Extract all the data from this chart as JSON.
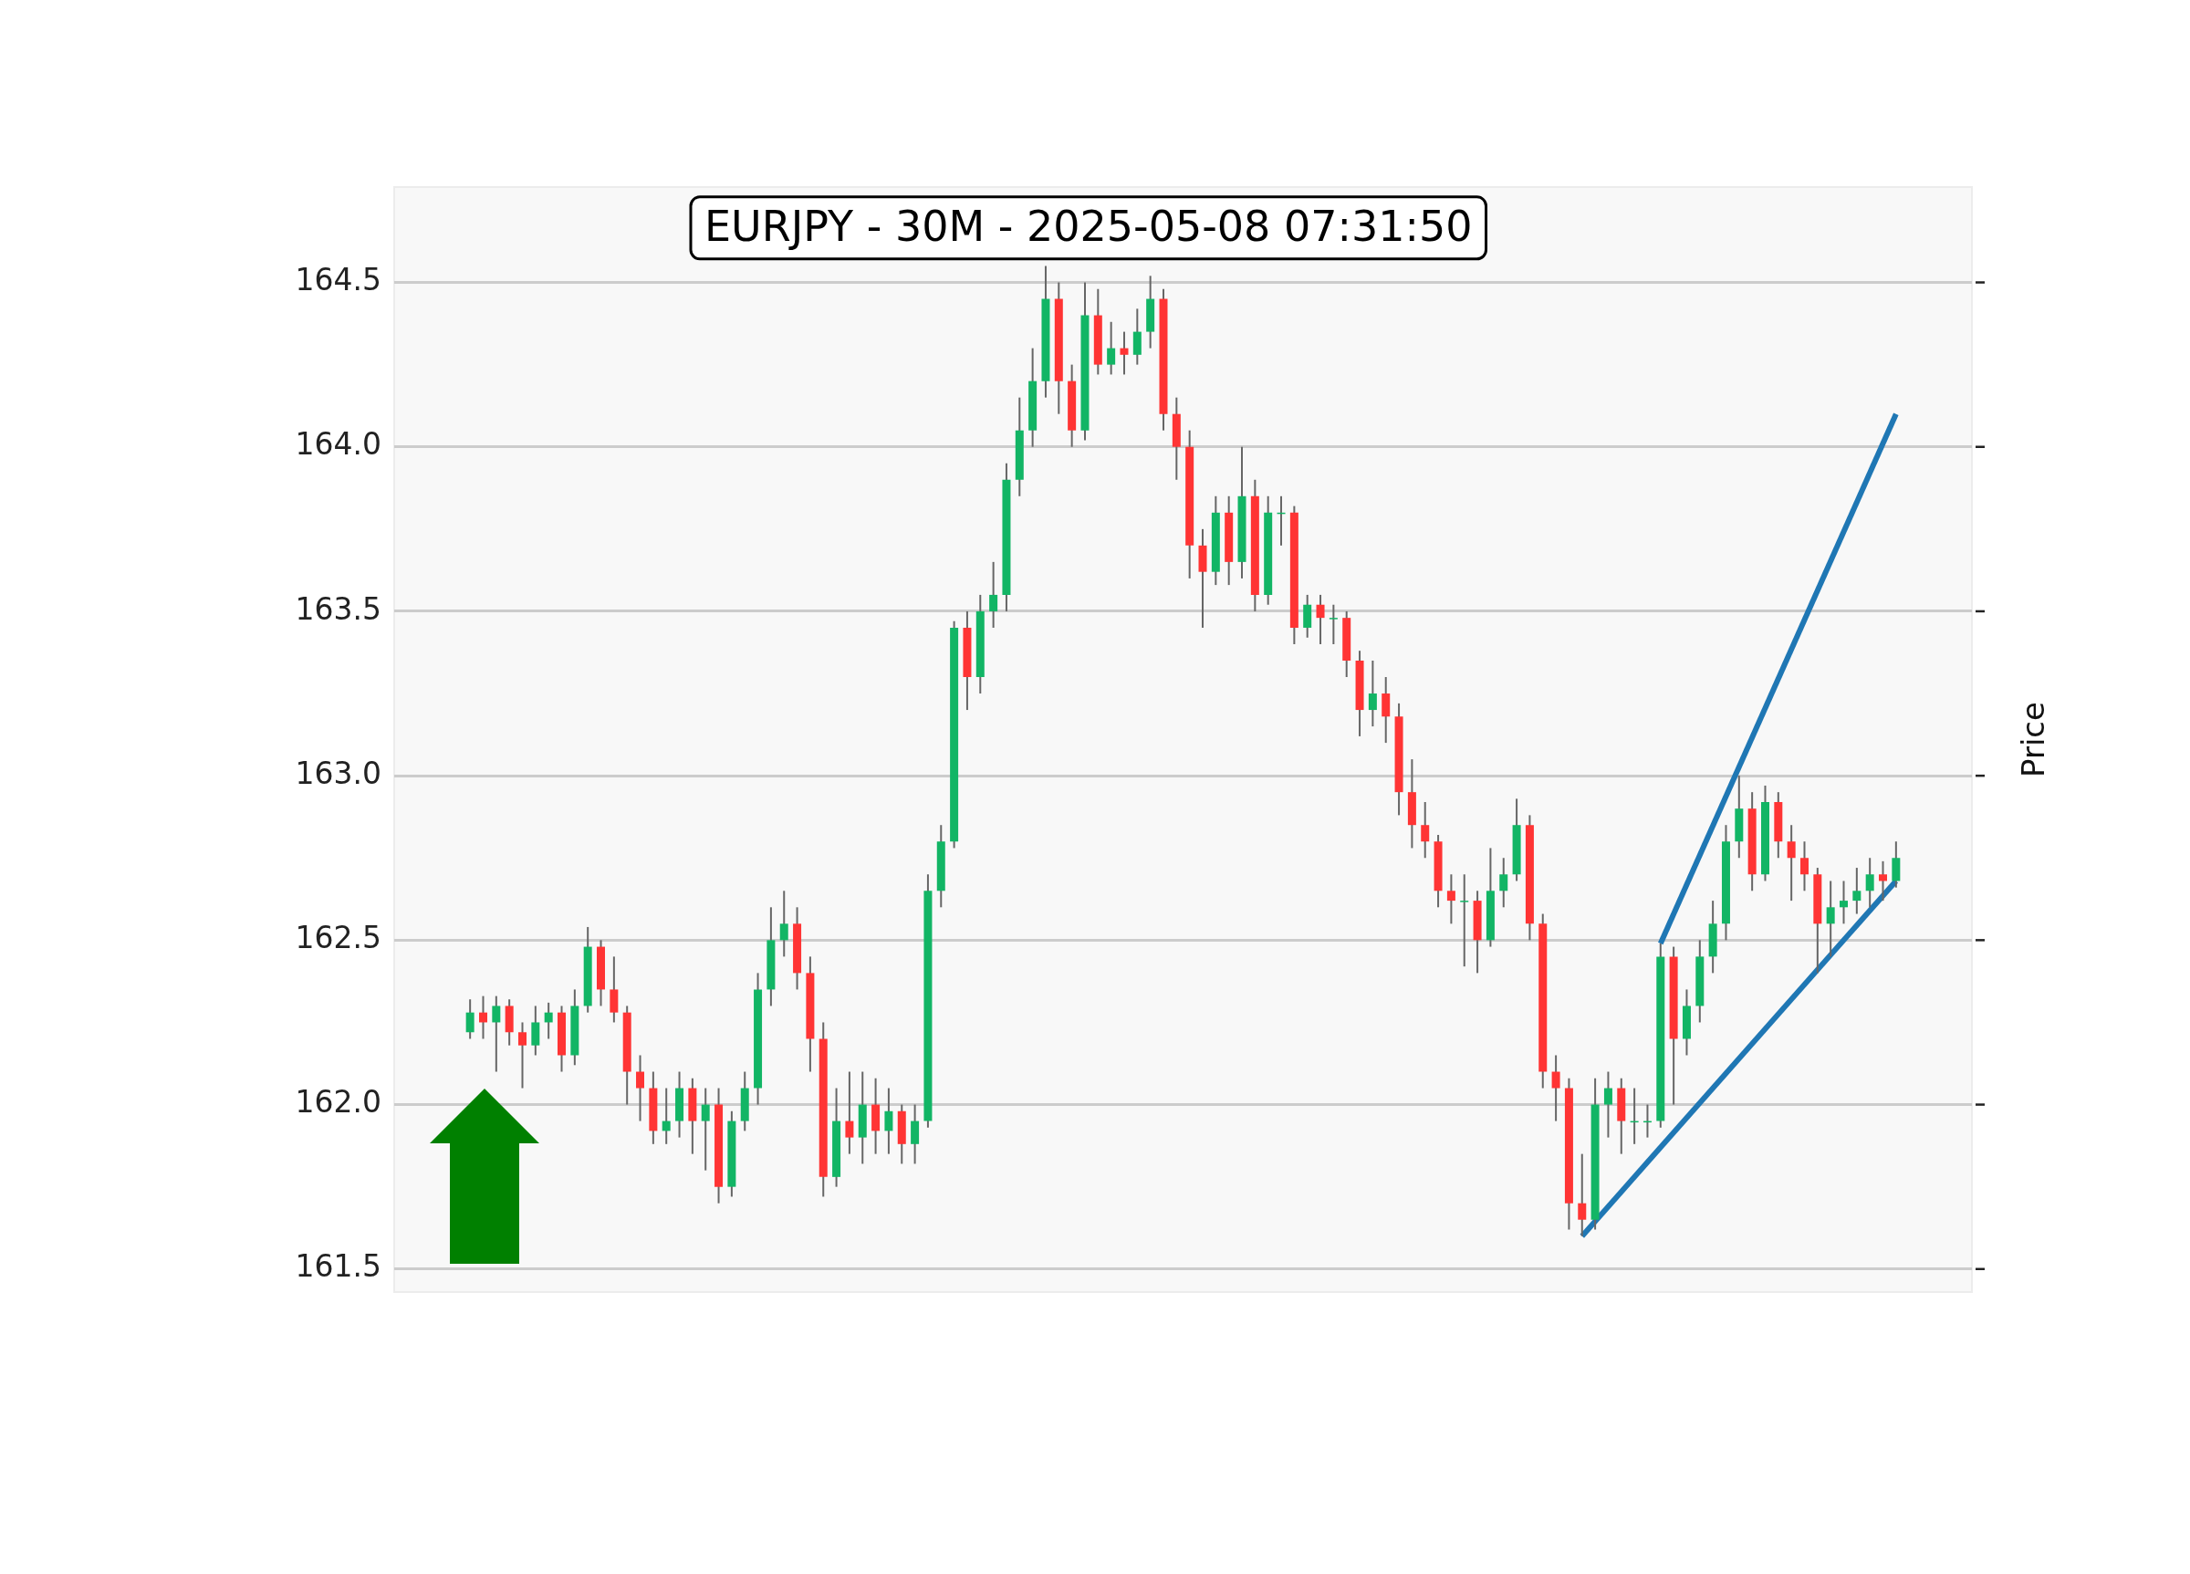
{
  "chart_data": {
    "type": "candlestick",
    "title": "EURJPY - 30M - 2025-05-08 07:31:50",
    "ylabel": "Price",
    "categories": [
      null,
      null,
      null,
      null,
      null,
      null,
      null,
      null,
      null,
      null,
      null,
      null,
      null,
      null,
      null,
      null,
      null,
      null,
      null,
      null,
      null,
      null,
      null,
      null,
      null,
      null,
      null,
      null,
      null,
      null,
      null,
      null,
      null,
      null,
      null,
      null,
      null,
      null,
      null,
      null,
      null,
      null,
      null,
      null,
      null,
      null,
      null,
      null,
      null,
      null,
      null,
      null,
      null,
      null,
      null,
      null,
      null,
      null,
      null,
      null,
      null,
      null,
      null,
      null,
      null,
      null,
      null,
      null,
      null,
      null,
      null,
      null,
      null,
      null,
      null,
      null,
      null,
      null,
      null,
      null,
      null,
      null,
      null,
      null,
      null,
      null,
      null,
      null,
      null,
      null,
      null,
      null,
      null,
      null,
      null,
      null,
      null,
      null,
      null,
      null,
      null,
      null,
      null,
      null,
      null,
      null,
      null,
      null,
      null,
      null
    ],
    "ohlc": [
      [
        162.22,
        162.32,
        162.2,
        162.28
      ],
      [
        162.28,
        162.33,
        162.2,
        162.25
      ],
      [
        162.25,
        162.33,
        162.1,
        162.3
      ],
      [
        162.3,
        162.32,
        162.18,
        162.22
      ],
      [
        162.22,
        162.25,
        162.05,
        162.18
      ],
      [
        162.18,
        162.3,
        162.15,
        162.25
      ],
      [
        162.25,
        162.31,
        162.2,
        162.28
      ],
      [
        162.28,
        162.3,
        162.1,
        162.15
      ],
      [
        162.15,
        162.35,
        162.12,
        162.3
      ],
      [
        162.3,
        162.54,
        162.28,
        162.48
      ],
      [
        162.48,
        162.5,
        162.3,
        162.35
      ],
      [
        162.35,
        162.45,
        162.25,
        162.28
      ],
      [
        162.28,
        162.3,
        162.0,
        162.1
      ],
      [
        162.1,
        162.15,
        161.95,
        162.05
      ],
      [
        162.05,
        162.1,
        161.88,
        161.92
      ],
      [
        161.92,
        162.05,
        161.88,
        161.95
      ],
      [
        161.95,
        162.1,
        161.9,
        162.05
      ],
      [
        162.05,
        162.08,
        161.85,
        161.95
      ],
      [
        161.95,
        162.05,
        161.8,
        162.0
      ],
      [
        162.0,
        162.05,
        161.7,
        161.75
      ],
      [
        161.75,
        161.98,
        161.72,
        161.95
      ],
      [
        161.95,
        162.1,
        161.92,
        162.05
      ],
      [
        162.05,
        162.4,
        162.0,
        162.35
      ],
      [
        162.35,
        162.6,
        162.3,
        162.5
      ],
      [
        162.5,
        162.65,
        162.45,
        162.55
      ],
      [
        162.55,
        162.6,
        162.35,
        162.4
      ],
      [
        162.4,
        162.45,
        162.1,
        162.2
      ],
      [
        162.2,
        162.25,
        161.72,
        161.78
      ],
      [
        161.78,
        162.05,
        161.75,
        161.95
      ],
      [
        161.95,
        162.1,
        161.85,
        161.9
      ],
      [
        161.9,
        162.1,
        161.82,
        162.0
      ],
      [
        162.0,
        162.08,
        161.85,
        161.92
      ],
      [
        161.92,
        162.05,
        161.85,
        161.98
      ],
      [
        161.98,
        162.0,
        161.82,
        161.88
      ],
      [
        161.88,
        162.0,
        161.82,
        161.95
      ],
      [
        161.95,
        162.7,
        161.93,
        162.65
      ],
      [
        162.65,
        162.85,
        162.6,
        162.8
      ],
      [
        162.8,
        163.47,
        162.78,
        163.45
      ],
      [
        163.45,
        163.5,
        163.2,
        163.3
      ],
      [
        163.3,
        163.55,
        163.25,
        163.5
      ],
      [
        163.5,
        163.65,
        163.45,
        163.55
      ],
      [
        163.55,
        163.95,
        163.5,
        163.9
      ],
      [
        163.9,
        164.15,
        163.85,
        164.05
      ],
      [
        164.05,
        164.3,
        164.0,
        164.2
      ],
      [
        164.2,
        164.55,
        164.15,
        164.45
      ],
      [
        164.45,
        164.5,
        164.1,
        164.2
      ],
      [
        164.2,
        164.25,
        164.0,
        164.05
      ],
      [
        164.05,
        164.5,
        164.02,
        164.4
      ],
      [
        164.4,
        164.48,
        164.22,
        164.25
      ],
      [
        164.25,
        164.38,
        164.22,
        164.3
      ],
      [
        164.3,
        164.35,
        164.22,
        164.28
      ],
      [
        164.28,
        164.42,
        164.25,
        164.35
      ],
      [
        164.35,
        164.52,
        164.3,
        164.45
      ],
      [
        164.45,
        164.48,
        164.05,
        164.1
      ],
      [
        164.1,
        164.15,
        163.9,
        164.0
      ],
      [
        164.0,
        164.05,
        163.6,
        163.7
      ],
      [
        163.7,
        163.75,
        163.45,
        163.62
      ],
      [
        163.62,
        163.85,
        163.58,
        163.8
      ],
      [
        163.8,
        163.85,
        163.58,
        163.65
      ],
      [
        163.65,
        164.0,
        163.6,
        163.85
      ],
      [
        163.85,
        163.9,
        163.5,
        163.55
      ],
      [
        163.55,
        163.85,
        163.52,
        163.8
      ],
      [
        163.8,
        163.85,
        163.7,
        163.8
      ],
      [
        163.8,
        163.82,
        163.4,
        163.45
      ],
      [
        163.45,
        163.55,
        163.42,
        163.52
      ],
      [
        163.52,
        163.55,
        163.4,
        163.48
      ],
      [
        163.48,
        163.52,
        163.4,
        163.48
      ],
      [
        163.48,
        163.5,
        163.3,
        163.35
      ],
      [
        163.35,
        163.38,
        163.12,
        163.2
      ],
      [
        163.2,
        163.35,
        163.15,
        163.25
      ],
      [
        163.25,
        163.3,
        163.1,
        163.18
      ],
      [
        163.18,
        163.22,
        162.88,
        162.95
      ],
      [
        162.95,
        163.05,
        162.78,
        162.85
      ],
      [
        162.85,
        162.92,
        162.75,
        162.8
      ],
      [
        162.8,
        162.82,
        162.6,
        162.65
      ],
      [
        162.65,
        162.7,
        162.55,
        162.62
      ],
      [
        162.62,
        162.7,
        162.42,
        162.62
      ],
      [
        162.62,
        162.65,
        162.4,
        162.5
      ],
      [
        162.5,
        162.78,
        162.48,
        162.65
      ],
      [
        162.65,
        162.75,
        162.6,
        162.7
      ],
      [
        162.7,
        162.93,
        162.68,
        162.85
      ],
      [
        162.85,
        162.88,
        162.5,
        162.55
      ],
      [
        162.55,
        162.58,
        162.05,
        162.1
      ],
      [
        162.1,
        162.15,
        161.95,
        162.05
      ],
      [
        162.05,
        162.08,
        161.62,
        161.7
      ],
      [
        161.7,
        161.85,
        161.6,
        161.65
      ],
      [
        161.65,
        162.08,
        161.62,
        162.0
      ],
      [
        162.0,
        162.1,
        161.9,
        162.05
      ],
      [
        162.05,
        162.08,
        161.85,
        161.95
      ],
      [
        161.95,
        162.05,
        161.88,
        161.95
      ],
      [
        161.95,
        162.0,
        161.9,
        161.95
      ],
      [
        161.95,
        162.49,
        161.93,
        162.45
      ],
      [
        162.45,
        162.48,
        162.0,
        162.2
      ],
      [
        162.2,
        162.35,
        162.15,
        162.3
      ],
      [
        162.3,
        162.5,
        162.25,
        162.45
      ],
      [
        162.45,
        162.62,
        162.4,
        162.55
      ],
      [
        162.55,
        162.85,
        162.5,
        162.8
      ],
      [
        162.8,
        163.0,
        162.75,
        162.9
      ],
      [
        162.9,
        162.95,
        162.65,
        162.7
      ],
      [
        162.7,
        162.97,
        162.68,
        162.92
      ],
      [
        162.92,
        162.95,
        162.75,
        162.8
      ],
      [
        162.8,
        162.85,
        162.62,
        162.75
      ],
      [
        162.75,
        162.8,
        162.65,
        162.7
      ],
      [
        162.7,
        162.72,
        162.4,
        162.55
      ],
      [
        162.55,
        162.68,
        162.45,
        162.6
      ],
      [
        162.6,
        162.68,
        162.55,
        162.62
      ],
      [
        162.62,
        162.72,
        162.58,
        162.65
      ],
      [
        162.65,
        162.75,
        162.6,
        162.7
      ],
      [
        162.7,
        162.74,
        162.62,
        162.68
      ],
      [
        162.68,
        162.8,
        162.66,
        162.75
      ]
    ],
    "series": [
      {
        "type": "line",
        "color": "#1f77b4",
        "values": [
          null,
          null,
          null,
          null,
          null,
          null,
          null,
          null,
          null,
          null,
          null,
          null,
          null,
          null,
          null,
          null,
          null,
          null,
          null,
          null,
          null,
          null,
          null,
          null,
          null,
          null,
          null,
          null,
          null,
          null,
          null,
          null,
          null,
          null,
          null,
          null,
          null,
          null,
          null,
          null,
          null,
          null,
          null,
          null,
          null,
          null,
          null,
          null,
          null,
          null,
          null,
          null,
          null,
          null,
          null,
          null,
          null,
          null,
          null,
          null,
          null,
          null,
          null,
          null,
          null,
          null,
          null,
          null,
          null,
          null,
          null,
          null,
          null,
          null,
          null,
          null,
          null,
          null,
          null,
          null,
          null,
          null,
          null,
          null,
          null,
          161.6,
          null,
          null,
          null,
          null,
          null,
          null,
          null,
          null,
          null,
          null,
          null,
          null,
          null,
          null,
          null,
          null,
          null,
          null,
          null,
          null,
          null,
          null,
          null,
          162.68
        ]
      },
      {
        "type": "line",
        "color": "#1f77b4",
        "values": [
          null,
          null,
          null,
          null,
          null,
          null,
          null,
          null,
          null,
          null,
          null,
          null,
          null,
          null,
          null,
          null,
          null,
          null,
          null,
          null,
          null,
          null,
          null,
          null,
          null,
          null,
          null,
          null,
          null,
          null,
          null,
          null,
          null,
          null,
          null,
          null,
          null,
          null,
          null,
          null,
          null,
          null,
          null,
          null,
          null,
          null,
          null,
          null,
          null,
          null,
          null,
          null,
          null,
          null,
          null,
          null,
          null,
          null,
          null,
          null,
          null,
          null,
          null,
          null,
          null,
          null,
          null,
          null,
          null,
          null,
          null,
          null,
          null,
          null,
          null,
          null,
          null,
          null,
          null,
          null,
          null,
          null,
          null,
          null,
          null,
          null,
          null,
          null,
          null,
          null,
          null,
          162.49,
          null,
          null,
          null,
          null,
          null,
          null,
          null,
          null,
          null,
          null,
          null,
          null,
          null,
          null,
          null,
          null,
          null,
          164.1
        ]
      }
    ],
    "ylim": [
      161.43,
      164.79
    ],
    "yticks": [
      {
        "value": 161.5,
        "label": "161.5"
      },
      {
        "value": 162,
        "label": "162.0"
      },
      {
        "value": 162.5,
        "label": "162.5"
      },
      {
        "value": 163,
        "label": "163.0"
      },
      {
        "value": 163.5,
        "label": "163.5"
      },
      {
        "value": 164,
        "label": "164.0"
      },
      {
        "value": 164.5,
        "label": "164.5"
      }
    ],
    "grid": "y",
    "tick_labels": "y",
    "legend": false
  }
}
